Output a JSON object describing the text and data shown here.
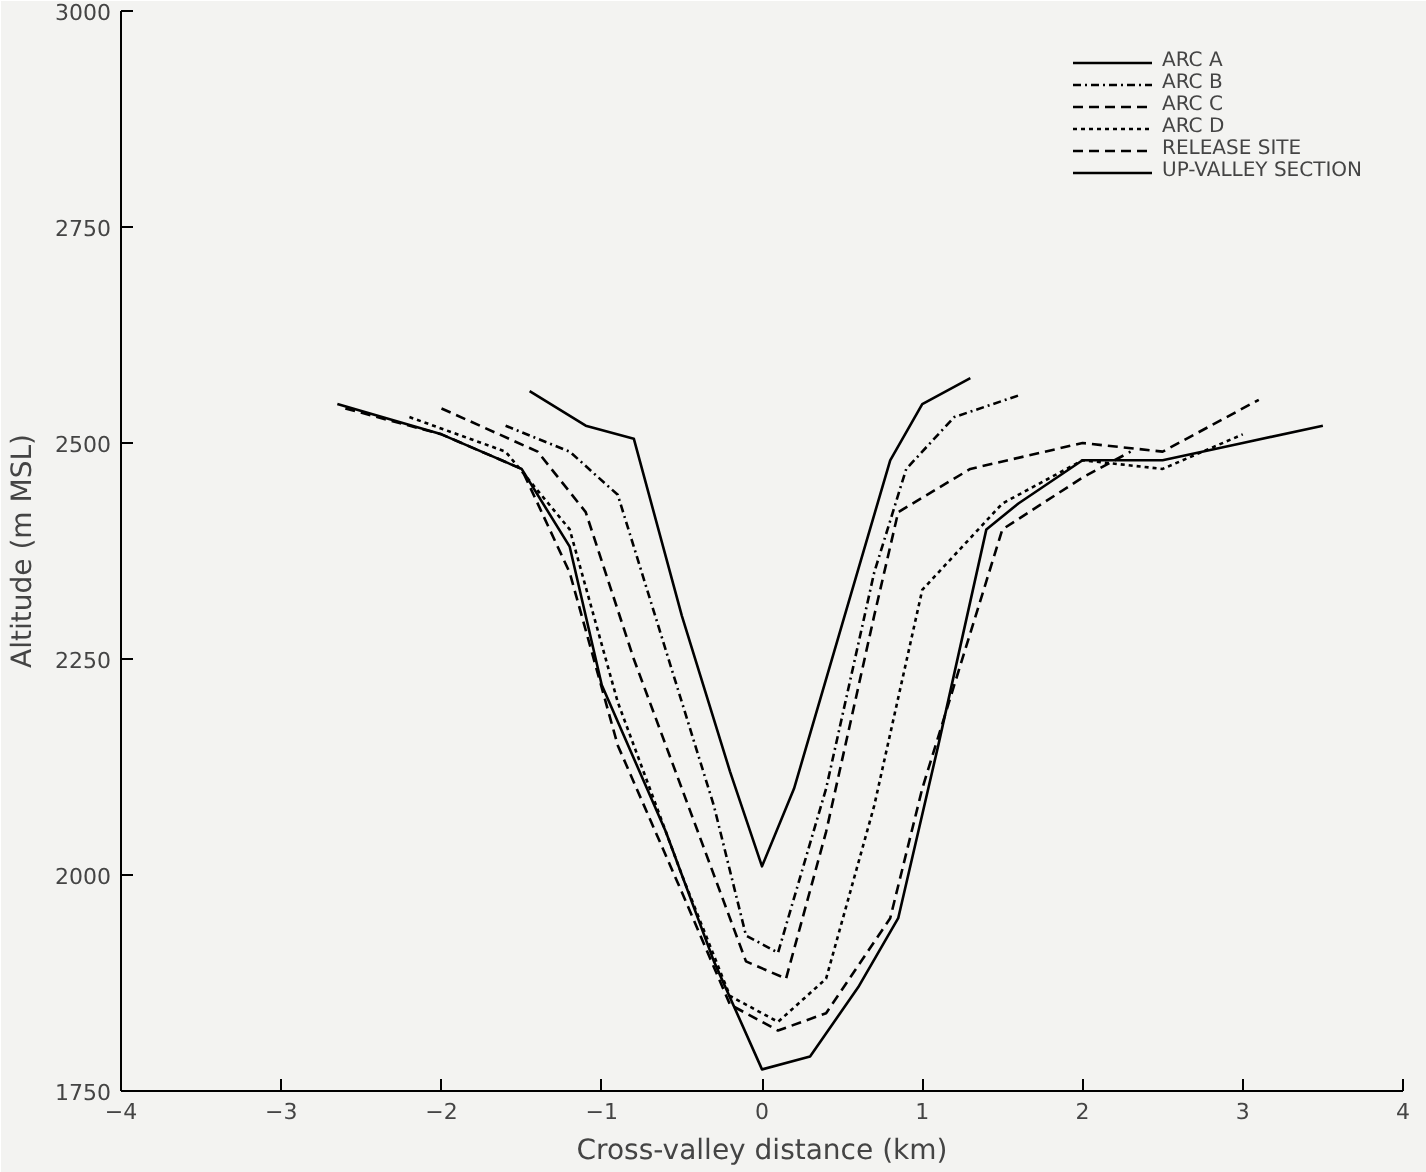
{
  "chart_data": {
    "type": "line",
    "xlabel": "Cross-valley distance (km)",
    "ylabel": "Altitude (m MSL)",
    "xlim": [
      -4,
      4
    ],
    "ylim": [
      1750,
      3000
    ],
    "xticks": [
      -4,
      -3,
      -2,
      -1,
      0,
      1,
      2,
      3,
      4
    ],
    "yticks": [
      1750,
      2000,
      2250,
      2500,
      2750,
      3000
    ],
    "grid": false,
    "legend": "top right",
    "series": [
      {
        "name": "ARC A",
        "color": "#000000",
        "line_style": "solid",
        "x": [
          -1.45,
          -1.1,
          -0.8,
          -0.5,
          -0.2,
          0,
          0.2,
          0.5,
          0.8,
          1.0,
          1.3
        ],
        "values": [
          2560,
          2520,
          2505,
          2300,
          2120,
          2010,
          2100,
          2290,
          2480,
          2545,
          2575
        ]
      },
      {
        "name": "ARC B",
        "color": "#000000",
        "line_style": "dashdot",
        "x": [
          -1.6,
          -1.2,
          -0.9,
          -0.6,
          -0.3,
          -0.1,
          0.1,
          0.4,
          0.7,
          0.9,
          1.2,
          1.6
        ],
        "values": [
          2520,
          2490,
          2440,
          2260,
          2080,
          1930,
          1910,
          2100,
          2350,
          2470,
          2530,
          2555
        ]
      },
      {
        "name": "ARC C",
        "color": "#000000",
        "line_style": "dashed",
        "x": [
          -2.0,
          -1.4,
          -1.1,
          -0.8,
          -0.4,
          -0.1,
          0.15,
          0.4,
          0.7,
          0.85,
          1.3,
          2.0,
          2.5,
          3.1
        ],
        "values": [
          2540,
          2490,
          2420,
          2250,
          2050,
          1900,
          1880,
          2050,
          2300,
          2420,
          2470,
          2500,
          2490,
          2550
        ]
      },
      {
        "name": "ARC D",
        "color": "#000000",
        "line_style": "dotted",
        "x": [
          -2.2,
          -1.6,
          -1.2,
          -0.9,
          -0.5,
          -0.2,
          0.1,
          0.4,
          0.7,
          1.0,
          1.5,
          2.0,
          2.5,
          3.0
        ],
        "values": [
          2530,
          2490,
          2400,
          2200,
          2000,
          1860,
          1830,
          1880,
          2080,
          2330,
          2430,
          2480,
          2470,
          2510
        ]
      },
      {
        "name": "RELEASE SITE",
        "color": "#000000",
        "line_style": "dashed",
        "x": [
          -2.6,
          -2.0,
          -1.5,
          -1.2,
          -0.9,
          -0.5,
          -0.2,
          0.1,
          0.4,
          0.8,
          1.0,
          1.5,
          2.0,
          2.3
        ],
        "values": [
          2540,
          2510,
          2470,
          2350,
          2150,
          1980,
          1850,
          1820,
          1840,
          1950,
          2100,
          2400,
          2460,
          2490
        ]
      },
      {
        "name": "UP-VALLEY SECTION",
        "color": "#000000",
        "line_style": "solid",
        "x": [
          -2.65,
          -2.0,
          -1.5,
          -1.2,
          -1.0,
          -0.6,
          -0.3,
          0,
          0.3,
          0.6,
          0.85,
          1.1,
          1.4,
          1.6,
          2.0,
          2.5,
          3.0,
          3.5
        ],
        "values": [
          2545,
          2510,
          2470,
          2380,
          2220,
          2050,
          1900,
          1775,
          1790,
          1870,
          1950,
          2150,
          2400,
          2430,
          2480,
          2480,
          2500,
          2520
        ]
      }
    ]
  }
}
